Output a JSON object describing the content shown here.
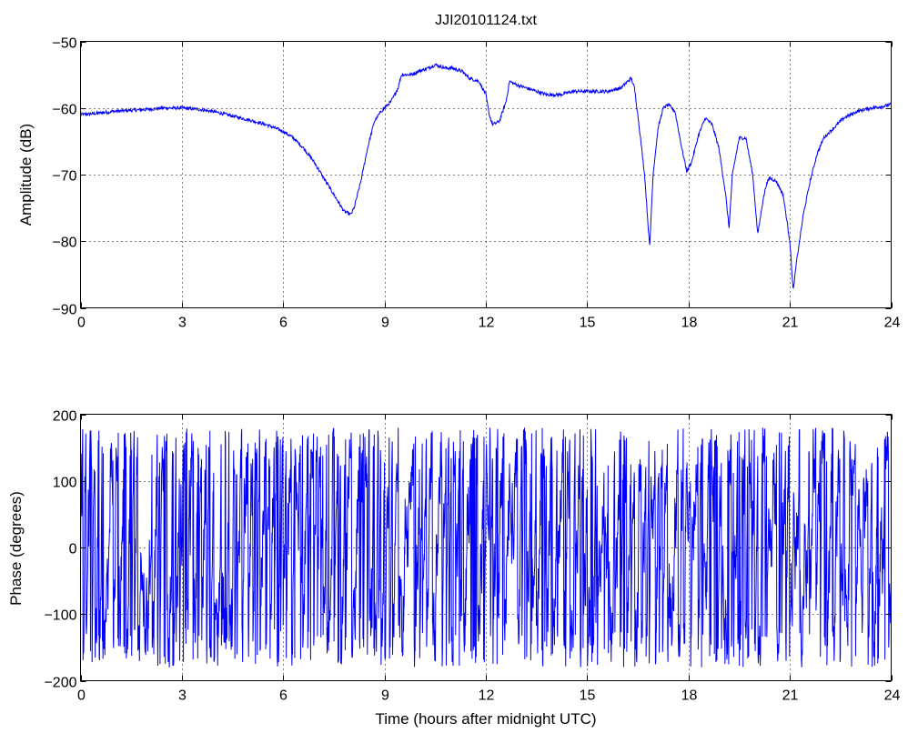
{
  "chart_data": [
    {
      "type": "line",
      "title": "JJI20101124.txt",
      "xlabel": "",
      "ylabel": "Amplitude (dB)",
      "xlim": [
        0,
        24
      ],
      "ylim": [
        -90,
        -50
      ],
      "xticks": [
        "0",
        "3",
        "6",
        "9",
        "12",
        "15",
        "18",
        "21",
        "24"
      ],
      "yticks": [
        "−50",
        "−60",
        "−70",
        "−80",
        "−90"
      ],
      "grid": true,
      "color": "#0000ff",
      "series": [
        {
          "x": [
            0,
            0.5,
            1,
            2,
            2.5,
            3,
            3.5,
            4,
            4.5,
            5,
            5.5,
            6,
            6.3,
            6.6,
            6.9,
            7.2,
            7.5,
            7.8,
            8,
            8.1,
            8.3,
            8.5,
            8.7,
            8.9,
            9,
            9.2,
            9.4,
            9.5,
            9.8,
            10,
            10.3,
            10.5,
            10.8,
            11,
            11.3,
            11.5,
            11.8,
            12,
            12.1,
            12.2,
            12.4,
            12.6,
            12.7,
            12.9,
            13.2,
            13.5,
            13.8,
            14.2,
            14.6,
            15,
            15.3,
            15.6,
            16,
            16.2,
            16.3,
            16.4,
            16.5,
            16.7,
            16.85,
            16.95,
            17.1,
            17.25,
            17.4,
            17.6,
            17.8,
            17.95,
            18.1,
            18.3,
            18.5,
            18.7,
            18.9,
            19.1,
            19.2,
            19.3,
            19.5,
            19.7,
            19.9,
            20.05,
            20.2,
            20.3,
            20.4,
            20.6,
            20.8,
            21,
            21.1,
            21.2,
            21.4,
            21.6,
            21.8,
            22,
            22.3,
            22.6,
            23,
            23.4,
            23.7,
            24
          ],
          "y": [
            -61,
            -60.8,
            -60.5,
            -60.2,
            -60,
            -60,
            -60.2,
            -60.6,
            -61.2,
            -61.8,
            -62.5,
            -63.5,
            -64.5,
            -66,
            -68,
            -70.5,
            -73,
            -75.5,
            -76,
            -75,
            -71,
            -66,
            -62,
            -60.5,
            -60,
            -59,
            -57,
            -55,
            -55,
            -54.5,
            -54,
            -53.5,
            -54,
            -54,
            -54.5,
            -55.5,
            -56,
            -58,
            -61,
            -62.5,
            -62,
            -59,
            -56,
            -56.5,
            -57,
            -57.5,
            -58,
            -58,
            -57.5,
            -57.5,
            -57.5,
            -57.5,
            -57,
            -56,
            -55.5,
            -57,
            -61,
            -70,
            -81,
            -70,
            -63,
            -60,
            -59.5,
            -60.5,
            -66,
            -69.5,
            -68,
            -64,
            -61.5,
            -62.5,
            -66,
            -73,
            -78,
            -70,
            -64.5,
            -64.5,
            -70,
            -79,
            -74,
            -71.5,
            -70.5,
            -71,
            -73,
            -80,
            -87.5,
            -83,
            -76,
            -71,
            -67,
            -64.5,
            -63,
            -61.5,
            -60.5,
            -60,
            -59.8,
            -59.5
          ]
        }
      ]
    },
    {
      "type": "line",
      "title": "",
      "xlabel": "Time (hours after midnight UTC)",
      "ylabel": "Phase (degrees)",
      "xlim": [
        0,
        24
      ],
      "ylim": [
        -200,
        200
      ],
      "xticks": [
        "0",
        "3",
        "6",
        "9",
        "12",
        "15",
        "18",
        "21",
        "24"
      ],
      "yticks": [
        "200",
        "100",
        "0",
        "−100",
        "−200"
      ],
      "grid": true,
      "color": "#0000ff",
      "note": "phase wraps between −180 and 180 degrees; values appear noise-like"
    }
  ]
}
